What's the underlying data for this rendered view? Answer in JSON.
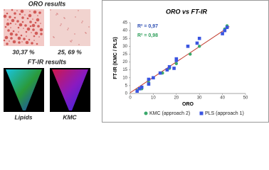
{
  "panels": {
    "oro_title": "ORO results",
    "oro_labels": [
      "30,37 %",
      "25, 69 %"
    ],
    "ftir_title": "FT-IR results",
    "ftir_labels": [
      "Lipids",
      "KMC"
    ]
  },
  "chart_data": {
    "type": "scatter",
    "title": "ORO vs FT-IR",
    "x_label": "ORO",
    "y_label": "FT-IR (KMC / PLS)",
    "xlim": [
      0,
      50
    ],
    "ylim": [
      0,
      45
    ],
    "xticks": [
      0,
      10,
      20,
      30,
      40,
      50
    ],
    "yticks": [
      0,
      5,
      10,
      15,
      20,
      25,
      30,
      35,
      40,
      45
    ],
    "grid": false,
    "legend": "bottom",
    "annotations": [
      {
        "text": "R² = 0,97",
        "color": "#2e4fb3"
      },
      {
        "text": "R² = 0,98",
        "color": "#2e9e5a"
      }
    ],
    "trendline": {
      "color": "#c0392b",
      "x": [
        0,
        43
      ],
      "y": [
        0.5,
        42.5
      ]
    },
    "series": [
      {
        "name": "KMC (approach 2)",
        "color": "#3aa86b",
        "marker": "circle",
        "x": [
          3,
          5,
          8,
          10,
          14,
          17,
          20,
          26,
          30,
          41,
          42
        ],
        "y": [
          2,
          3,
          7,
          10,
          13,
          16,
          19,
          25,
          30,
          41,
          43
        ]
      },
      {
        "name": "PLS (approach 1)",
        "color": "#3a55e0",
        "marker": "square",
        "x": [
          3,
          4,
          5,
          8,
          8,
          10,
          13,
          16,
          17,
          19,
          20,
          20,
          25,
          29,
          30,
          40,
          41,
          42
        ],
        "y": [
          1.5,
          3,
          4,
          6,
          9,
          10,
          13,
          15,
          17,
          16,
          22,
          21,
          30,
          32,
          35,
          38,
          40,
          42
        ]
      }
    ]
  }
}
